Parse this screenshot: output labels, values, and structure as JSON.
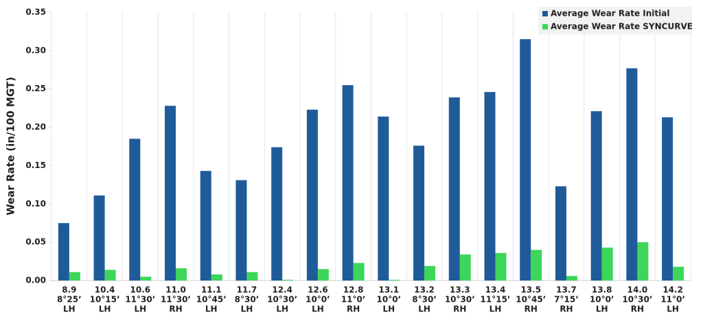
{
  "chart_data": {
    "type": "bar",
    "y_label": "Wear Rate (in/100 MGT)",
    "categories": [
      [
        "8.9",
        "8°25’",
        "LH"
      ],
      [
        "10.4",
        "10°15’",
        "LH"
      ],
      [
        "10.6",
        "11°30’",
        "LH"
      ],
      [
        "11.0",
        "11°30’",
        "RH"
      ],
      [
        "11.1",
        "10°45’",
        "LH"
      ],
      [
        "11.7",
        "8°30’",
        "LH"
      ],
      [
        "12.4",
        "10°30’",
        "LH"
      ],
      [
        "12.6",
        "10°0’",
        "LH"
      ],
      [
        "12.8",
        "11°0’",
        "RH"
      ],
      [
        "13.1",
        "10°0’",
        "LH"
      ],
      [
        "13.2",
        "8°30’",
        "LH"
      ],
      [
        "13.3",
        "10°30’",
        "RH"
      ],
      [
        "13.4",
        "11°15’",
        "LH"
      ],
      [
        "13.5",
        "10°45’",
        "RH"
      ],
      [
        "13.7",
        "7°15’",
        "RH"
      ],
      [
        "13.8",
        "10°0’",
        "LH"
      ],
      [
        "14.0",
        "10°30’",
        "RH"
      ],
      [
        "14.2",
        "11°0’",
        "LH"
      ]
    ],
    "series": [
      {
        "name": "Average Wear Rate Initial",
        "color": "#1f5b99",
        "values": [
          0.075,
          0.111,
          0.185,
          0.228,
          0.143,
          0.131,
          0.174,
          0.223,
          0.255,
          0.214,
          0.176,
          0.239,
          0.246,
          0.315,
          0.123,
          0.221,
          0.277,
          0.213
        ]
      },
      {
        "name": "Average Wear Rate SYNCURVE",
        "color": "#3ed65a",
        "values": [
          0.011,
          0.014,
          0.005,
          0.016,
          0.008,
          0.011,
          0.001,
          0.015,
          0.023,
          0.001,
          0.019,
          0.034,
          0.036,
          0.04,
          0.006,
          0.043,
          0.05,
          0.018
        ]
      }
    ],
    "ylim": [
      0,
      0.35
    ],
    "yticks": [
      {
        "value": 0,
        "label": "0.00"
      },
      {
        "value": 0.05,
        "label": "0.05"
      },
      {
        "value": 0.1,
        "label": "0.10"
      },
      {
        "value": 0.15,
        "label": "0.15"
      },
      {
        "value": 0.2,
        "label": "0.20"
      },
      {
        "value": 0.25,
        "label": "0.25"
      },
      {
        "value": 0.3,
        "label": "0.30"
      },
      {
        "value": 0.35,
        "label": "0.35"
      }
    ],
    "legend": "top-right"
  }
}
